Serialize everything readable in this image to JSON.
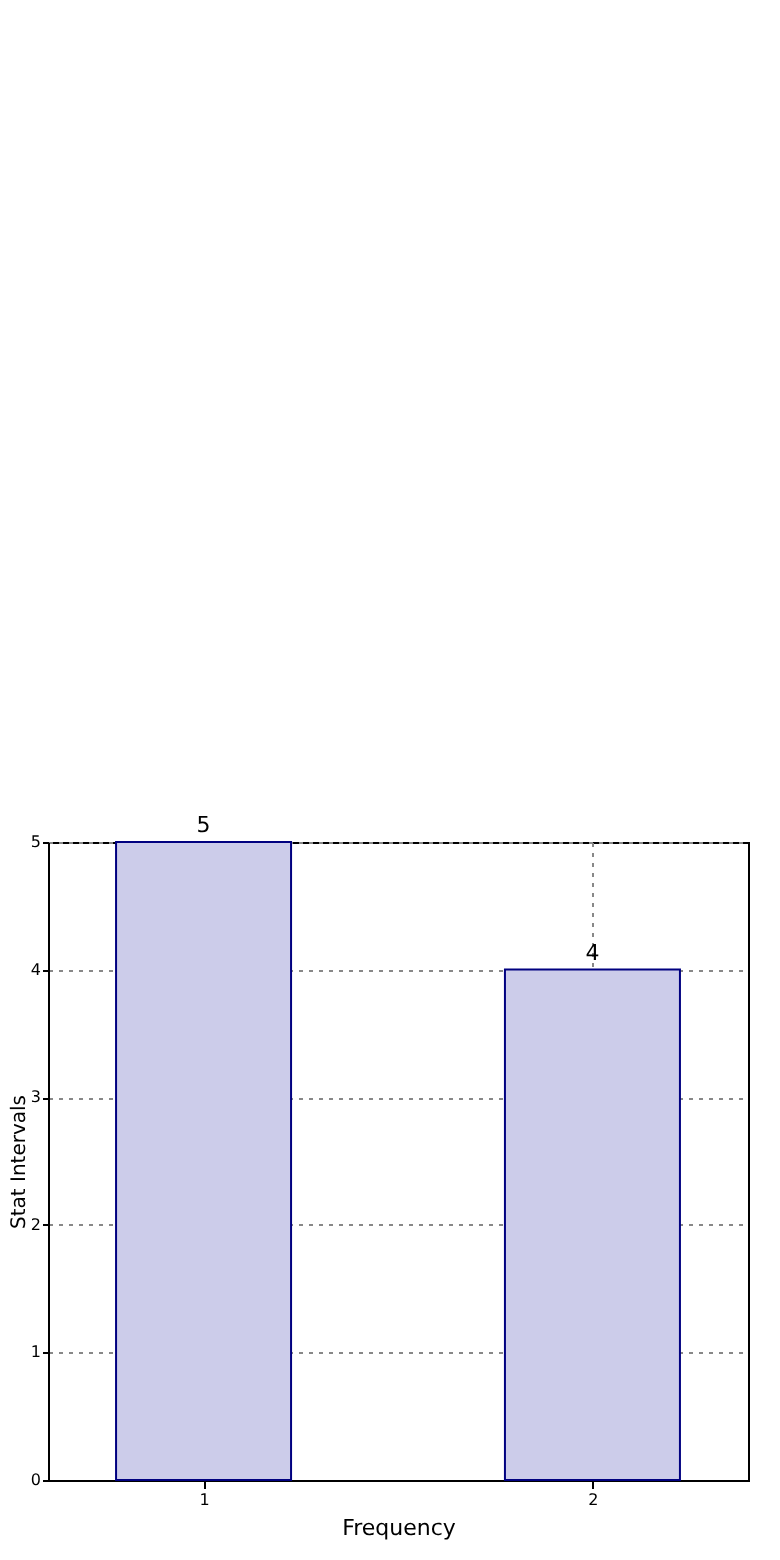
{
  "chart_data": {
    "type": "bar",
    "xlabel": "Frequency",
    "ylabel": "Stat Intervals",
    "x": [
      1,
      2
    ],
    "values": [
      5,
      4
    ],
    "color": "#ccccea",
    "xlim": [
      0.6,
      2.4
    ],
    "xticks": [
      1,
      2
    ],
    "ylim": [
      0,
      5
    ],
    "yticks": [
      0,
      1,
      2,
      3,
      4,
      5
    ],
    "grid": true,
    "data_labels": true
  }
}
